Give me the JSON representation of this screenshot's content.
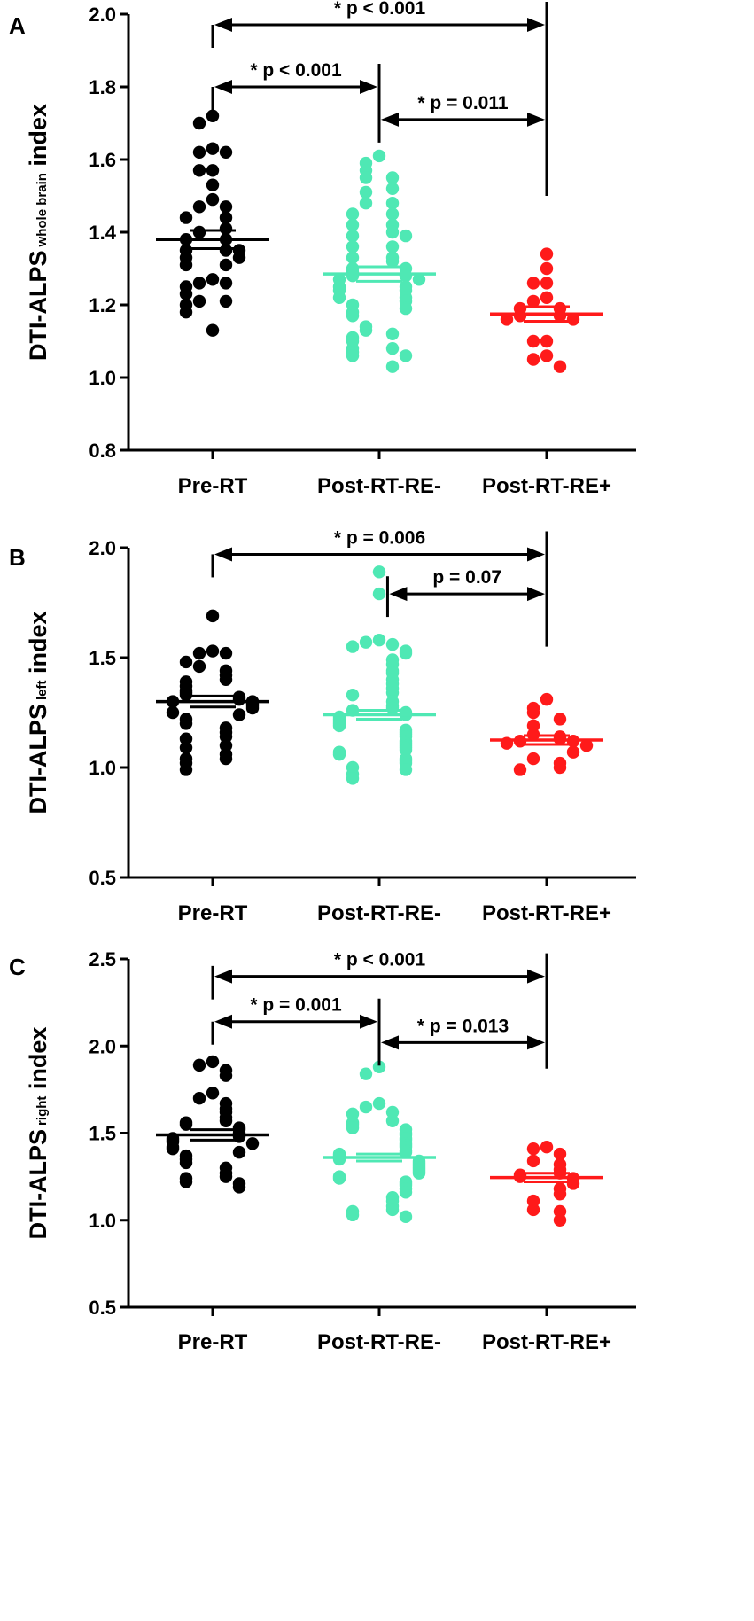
{
  "colors": {
    "pre_rt": "#000000",
    "post_re_minus": "#4fe8b4",
    "post_re_plus": "#ff1a1a"
  },
  "chart_data": [
    {
      "type": "scatter",
      "panel": "A",
      "ylabel_main": "DTI-ALPS",
      "ylabel_sub": "whole brain",
      "ylabel_tail": " index",
      "ylim": [
        0.8,
        2.0
      ],
      "yticks": [
        0.8,
        1.0,
        1.2,
        1.4,
        1.6,
        1.8,
        2.0
      ],
      "ytick_labels": [
        "0.8",
        "1.0",
        "1.2",
        "1.4",
        "1.6",
        "1.8",
        "2.0"
      ],
      "categories": [
        "Pre-RT",
        "Post-RT-RE-",
        "Post-RT-RE+"
      ],
      "series": [
        {
          "name": "Pre-RT",
          "mean": 1.38,
          "sem": 0.025,
          "values": [
            1.72,
            1.7,
            1.63,
            1.62,
            1.62,
            1.57,
            1.57,
            1.53,
            1.49,
            1.47,
            1.47,
            1.44,
            1.44,
            1.41,
            1.4,
            1.38,
            1.38,
            1.35,
            1.35,
            1.35,
            1.33,
            1.33,
            1.31,
            1.31,
            1.27,
            1.26,
            1.26,
            1.25,
            1.23,
            1.21,
            1.21,
            1.2,
            1.18,
            1.13
          ]
        },
        {
          "name": "Post-RT-RE-",
          "mean": 1.285,
          "sem": 0.02,
          "values": [
            1.61,
            1.59,
            1.57,
            1.55,
            1.55,
            1.52,
            1.51,
            1.48,
            1.48,
            1.45,
            1.45,
            1.42,
            1.42,
            1.4,
            1.39,
            1.39,
            1.36,
            1.36,
            1.33,
            1.33,
            1.32,
            1.3,
            1.3,
            1.29,
            1.28,
            1.28,
            1.27,
            1.27,
            1.25,
            1.25,
            1.24,
            1.24,
            1.22,
            1.22,
            1.21,
            1.2,
            1.19,
            1.18,
            1.17,
            1.14,
            1.13,
            1.12,
            1.11,
            1.1,
            1.08,
            1.08,
            1.07,
            1.06,
            1.06,
            1.03
          ]
        },
        {
          "name": "Post-RT-RE+",
          "mean": 1.175,
          "sem": 0.02,
          "values": [
            1.34,
            1.3,
            1.26,
            1.26,
            1.22,
            1.21,
            1.19,
            1.19,
            1.17,
            1.17,
            1.16,
            1.16,
            1.1,
            1.1,
            1.06,
            1.05,
            1.03
          ]
        }
      ],
      "comparisons": [
        {
          "from": 0,
          "to": 2,
          "label": "* p < 0.001",
          "y": 1.98,
          "left_top": 2.06,
          "right_bottom": 1.5
        },
        {
          "from": 0,
          "to": 1,
          "label": "* p < 0.001",
          "y": 1.8,
          "left_top": 1.8,
          "right_bottom": 1.71
        },
        {
          "from": 1,
          "to": 2,
          "label": "* p = 0.011",
          "y": 1.71,
          "left_top": 1.85,
          "right_bottom": 1.71
        }
      ]
    },
    {
      "type": "scatter",
      "panel": "B",
      "ylabel_main": "DTI-ALPS",
      "ylabel_sub": "left",
      "ylabel_tail": " index",
      "ylim": [
        0.5,
        2.0
      ],
      "yticks": [
        0.5,
        1.0,
        1.5,
        2.0
      ],
      "ytick_labels": [
        "0.5",
        "1.0",
        "1.5",
        "2.0"
      ],
      "categories": [
        "Pre-RT",
        "Post-RT-RE-",
        "Post-RT-RE+"
      ],
      "series": [
        {
          "name": "Pre-RT",
          "mean": 1.3,
          "sem": 0.025,
          "values": [
            1.69,
            1.53,
            1.52,
            1.52,
            1.48,
            1.46,
            1.44,
            1.42,
            1.4,
            1.39,
            1.37,
            1.35,
            1.34,
            1.33,
            1.32,
            1.31,
            1.3,
            1.3,
            1.29,
            1.28,
            1.27,
            1.25,
            1.24,
            1.22,
            1.2,
            1.18,
            1.16,
            1.14,
            1.13,
            1.1,
            1.09,
            1.06,
            1.04,
            1.04,
            1.02,
            0.99
          ]
        },
        {
          "name": "Post-RT-RE-",
          "mean": 1.24,
          "sem": 0.02,
          "values": [
            1.89,
            1.79,
            1.58,
            1.57,
            1.56,
            1.55,
            1.53,
            1.52,
            1.49,
            1.47,
            1.44,
            1.43,
            1.4,
            1.38,
            1.36,
            1.34,
            1.33,
            1.3,
            1.28,
            1.27,
            1.26,
            1.25,
            1.24,
            1.23,
            1.22,
            1.21,
            1.2,
            1.19,
            1.17,
            1.16,
            1.15,
            1.14,
            1.12,
            1.11,
            1.1,
            1.09,
            1.08,
            1.07,
            1.06,
            1.04,
            1.03,
            1.02,
            1.0,
            0.99,
            0.97,
            0.95
          ]
        },
        {
          "name": "Post-RT-RE+",
          "mean": 1.125,
          "sem": 0.02,
          "values": [
            1.31,
            1.27,
            1.25,
            1.22,
            1.19,
            1.15,
            1.14,
            1.13,
            1.12,
            1.12,
            1.11,
            1.1,
            1.07,
            1.04,
            1.02,
            1.0,
            0.99
          ]
        }
      ],
      "comparisons": [
        {
          "from": 0,
          "to": 2,
          "label": "* p = 0.006",
          "y": 1.97,
          "left_top": 1.97,
          "right_bottom": 1.55
        },
        {
          "from": 1.05,
          "to": 2,
          "label": "p = 0.07",
          "y": 1.79,
          "left_top": 1.87,
          "right_bottom": 1.79
        }
      ]
    },
    {
      "type": "scatter",
      "panel": "C",
      "ylabel_main": "DTI-ALPS",
      "ylabel_sub": "right",
      "ylabel_tail": " index",
      "ylim": [
        0.5,
        2.5
      ],
      "yticks": [
        0.5,
        1.0,
        1.5,
        2.0,
        2.5
      ],
      "ytick_labels": [
        "0.5",
        "1.0",
        "1.5",
        "2.0",
        "2.5"
      ],
      "categories": [
        "Pre-RT",
        "Post-RT-RE-",
        "Post-RT-RE+"
      ],
      "series": [
        {
          "name": "Pre-RT",
          "mean": 1.49,
          "sem": 0.03,
          "values": [
            1.91,
            1.89,
            1.86,
            1.83,
            1.73,
            1.7,
            1.67,
            1.64,
            1.62,
            1.59,
            1.57,
            1.56,
            1.55,
            1.53,
            1.52,
            1.5,
            1.49,
            1.48,
            1.47,
            1.46,
            1.45,
            1.44,
            1.42,
            1.41,
            1.39,
            1.37,
            1.35,
            1.33,
            1.3,
            1.27,
            1.25,
            1.24,
            1.22,
            1.21,
            1.19
          ]
        },
        {
          "name": "Post-RT-RE-",
          "mean": 1.36,
          "sem": 0.02,
          "values": [
            1.88,
            1.84,
            1.67,
            1.65,
            1.62,
            1.61,
            1.57,
            1.56,
            1.55,
            1.53,
            1.52,
            1.5,
            1.49,
            1.47,
            1.46,
            1.44,
            1.43,
            1.42,
            1.4,
            1.39,
            1.38,
            1.37,
            1.36,
            1.35,
            1.34,
            1.33,
            1.32,
            1.31,
            1.3,
            1.29,
            1.28,
            1.27,
            1.25,
            1.24,
            1.22,
            1.21,
            1.2,
            1.18,
            1.16,
            1.13,
            1.11,
            1.08,
            1.06,
            1.05,
            1.03,
            1.02
          ]
        },
        {
          "name": "Post-RT-RE+",
          "mean": 1.245,
          "sem": 0.025,
          "values": [
            1.42,
            1.41,
            1.38,
            1.34,
            1.32,
            1.29,
            1.27,
            1.26,
            1.25,
            1.24,
            1.21,
            1.18,
            1.15,
            1.11,
            1.06,
            1.05,
            1.0
          ]
        }
      ],
      "comparisons": [
        {
          "from": 0,
          "to": 2,
          "label": "* p < 0.001",
          "y": 2.4,
          "left_top": 2.46,
          "right_bottom": 1.87
        },
        {
          "from": 0,
          "to": 1,
          "label": "* p = 0.001",
          "y": 2.14,
          "left_top": 2.14,
          "right_bottom": 2.02
        },
        {
          "from": 1,
          "to": 2,
          "label": "* p = 0.013",
          "y": 2.02,
          "left_top": 2.2,
          "right_bottom": 2.02
        }
      ]
    }
  ]
}
